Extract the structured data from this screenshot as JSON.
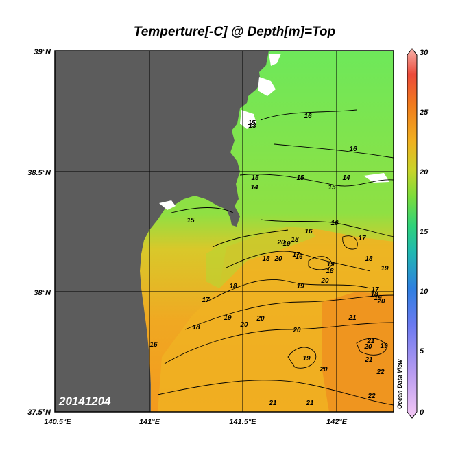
{
  "title": "Temperture[-C] @ Depth[m]=Top",
  "date_stamp": "20141204",
  "watermark": "Ocean Data View",
  "lat_labels": [
    "39°N",
    "38.5°N",
    "38°N",
    "37.5°N"
  ],
  "lon_labels": [
    "140.5°E",
    "141°E",
    "141.5°E",
    "142°E"
  ],
  "colorbar": {
    "ticks": [
      "30",
      "25",
      "20",
      "15",
      "10",
      "5",
      "0"
    ],
    "range": [
      0,
      30
    ]
  },
  "contour_labels": [
    "15",
    "16",
    "16",
    "15",
    "15",
    "14",
    "15",
    "14",
    "13",
    "15",
    "16",
    "16",
    "17",
    "18",
    "19",
    "20",
    "20",
    "18",
    "17",
    "16",
    "19",
    "18",
    "19",
    "20",
    "19",
    "18",
    "17",
    "18",
    "19",
    "20",
    "20",
    "21",
    "20",
    "19",
    "20",
    "21",
    "21",
    "22",
    "20",
    "19",
    "21",
    "21",
    "22",
    "16",
    "17",
    "18",
    "19",
    "20",
    "18"
  ],
  "colors": {
    "land": "#5c5c5c",
    "cold": "#5ce65c",
    "warm": "#f0a020",
    "frame": "#000000"
  }
}
